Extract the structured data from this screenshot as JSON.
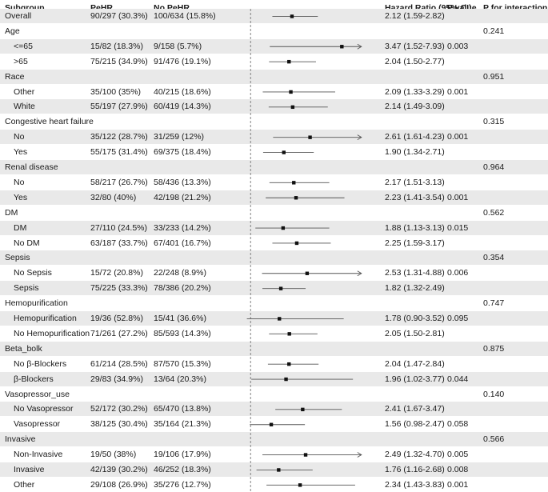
{
  "headers": {
    "subgroup": "Subgroup",
    "pehr": "PeHR",
    "no_pehr": "No PeHR",
    "hr": "Hazard Ratio (95% CI)",
    "p_value": "P value",
    "p_interaction": "P for interaction"
  },
  "rows": [
    {
      "kind": "data",
      "label": "Overall",
      "indent": false,
      "pehr": "90/297 (30.3%)",
      "no_pehr": "100/634 (15.8%)",
      "hr_text": "2.12 (1.59-2.82)",
      "p": "",
      "p_int": ""
    },
    {
      "kind": "group",
      "label": "Age",
      "indent": false,
      "pehr": "",
      "no_pehr": "",
      "hr_text": "",
      "p": "",
      "p_int": "0.241"
    },
    {
      "kind": "data",
      "label": "<=65",
      "indent": true,
      "pehr": "15/82 (18.3%)",
      "no_pehr": "9/158 (5.7%)",
      "hr_text": "3.47 (1.52-7.93)",
      "p": "0.003",
      "p_int": ""
    },
    {
      "kind": "data",
      "label": ">65",
      "indent": true,
      "pehr": "75/215 (34.9%)",
      "no_pehr": "91/476 (19.1%)",
      "hr_text": "2.04 (1.50-2.77)",
      "p": "",
      "p_int": ""
    },
    {
      "kind": "group",
      "label": "Race",
      "indent": false,
      "pehr": "",
      "no_pehr": "",
      "hr_text": "",
      "p": "",
      "p_int": "0.951"
    },
    {
      "kind": "data",
      "label": "Other",
      "indent": true,
      "pehr": "35/100 (35%)",
      "no_pehr": "40/215 (18.6%)",
      "hr_text": "2.09 (1.33-3.29)",
      "p": "0.001",
      "p_int": ""
    },
    {
      "kind": "data",
      "label": "White",
      "indent": true,
      "pehr": "55/197 (27.9%)",
      "no_pehr": "60/419 (14.3%)",
      "hr_text": "2.14 (1.49-3.09)",
      "p": "",
      "p_int": ""
    },
    {
      "kind": "group",
      "label": "Congestive heart failure",
      "indent": false,
      "pehr": "",
      "no_pehr": "",
      "hr_text": "",
      "p": "",
      "p_int": "0.315"
    },
    {
      "kind": "data",
      "label": "No",
      "indent": true,
      "pehr": "35/122 (28.7%)",
      "no_pehr": "31/259 (12%)",
      "hr_text": "2.61 (1.61-4.23)",
      "p": "0.001",
      "p_int": ""
    },
    {
      "kind": "data",
      "label": "Yes",
      "indent": true,
      "pehr": "55/175 (31.4%)",
      "no_pehr": "69/375 (18.4%)",
      "hr_text": "1.90 (1.34-2.71)",
      "p": "",
      "p_int": ""
    },
    {
      "kind": "group",
      "label": "Renal disease",
      "indent": false,
      "pehr": "",
      "no_pehr": "",
      "hr_text": "",
      "p": "",
      "p_int": "0.964"
    },
    {
      "kind": "data",
      "label": "No",
      "indent": true,
      "pehr": "58/217 (26.7%)",
      "no_pehr": "58/436 (13.3%)",
      "hr_text": "2.17 (1.51-3.13)",
      "p": "",
      "p_int": ""
    },
    {
      "kind": "data",
      "label": "Yes",
      "indent": true,
      "pehr": "32/80 (40%)",
      "no_pehr": "42/198 (21.2%)",
      "hr_text": "2.23 (1.41-3.54)",
      "p": "0.001",
      "p_int": ""
    },
    {
      "kind": "group",
      "label": "DM",
      "indent": false,
      "pehr": "",
      "no_pehr": "",
      "hr_text": "",
      "p": "",
      "p_int": "0.562"
    },
    {
      "kind": "data",
      "label": "DM",
      "indent": true,
      "pehr": "27/110 (24.5%)",
      "no_pehr": "33/233 (14.2%)",
      "hr_text": "1.88 (1.13-3.13)",
      "p": "0.015",
      "p_int": ""
    },
    {
      "kind": "data",
      "label": "No DM",
      "indent": true,
      "pehr": "63/187 (33.7%)",
      "no_pehr": "67/401 (16.7%)",
      "hr_text": "2.25 (1.59-3.17)",
      "p": "",
      "p_int": ""
    },
    {
      "kind": "group",
      "label": "Sepsis",
      "indent": false,
      "pehr": "",
      "no_pehr": "",
      "hr_text": "",
      "p": "",
      "p_int": "0.354"
    },
    {
      "kind": "data",
      "label": "No Sepsis",
      "indent": true,
      "pehr": "15/72 (20.8%)",
      "no_pehr": "22/248 (8.9%)",
      "hr_text": "2.53 (1.31-4.88)",
      "p": "0.006",
      "p_int": ""
    },
    {
      "kind": "data",
      "label": "Sepsis",
      "indent": true,
      "pehr": "75/225 (33.3%)",
      "no_pehr": "78/386 (20.2%)",
      "hr_text": "1.82 (1.32-2.49)",
      "p": "",
      "p_int": ""
    },
    {
      "kind": "group",
      "label": "Hemopurification",
      "indent": false,
      "pehr": "",
      "no_pehr": "",
      "hr_text": "",
      "p": "",
      "p_int": "0.747"
    },
    {
      "kind": "data",
      "label": "Hemopurification",
      "indent": true,
      "pehr": "19/36 (52.8%)",
      "no_pehr": "15/41 (36.6%)",
      "hr_text": "1.78 (0.90-3.52)",
      "p": "0.095",
      "p_int": ""
    },
    {
      "kind": "data",
      "label": "No Hemopurification",
      "indent": true,
      "pehr": "71/261 (27.2%)",
      "no_pehr": "85/593 (14.3%)",
      "hr_text": "2.05 (1.50-2.81)",
      "p": "",
      "p_int": ""
    },
    {
      "kind": "group",
      "label": "Beta_bolk",
      "indent": false,
      "pehr": "",
      "no_pehr": "",
      "hr_text": "",
      "p": "",
      "p_int": "0.875"
    },
    {
      "kind": "data",
      "label": "No β-Blockers",
      "indent": true,
      "pehr": "61/214 (28.5%)",
      "no_pehr": "87/570 (15.3%)",
      "hr_text": "2.04 (1.47-2.84)",
      "p": "",
      "p_int": ""
    },
    {
      "kind": "data",
      "label": "β-Blockers",
      "indent": true,
      "pehr": "29/83 (34.9%)",
      "no_pehr": "13/64 (20.3%)",
      "hr_text": "1.96 (1.02-3.77)",
      "p": "0.044",
      "p_int": ""
    },
    {
      "kind": "group",
      "label": "Vasopressor_use",
      "indent": false,
      "pehr": "",
      "no_pehr": "",
      "hr_text": "",
      "p": "",
      "p_int": "0.140"
    },
    {
      "kind": "data",
      "label": "No Vasopressor",
      "indent": true,
      "pehr": "52/172 (30.2%)",
      "no_pehr": "65/470 (13.8%)",
      "hr_text": "2.41 (1.67-3.47)",
      "p": "",
      "p_int": ""
    },
    {
      "kind": "data",
      "label": "Vasopressor",
      "indent": true,
      "pehr": "38/125 (30.4%)",
      "no_pehr": "35/164 (21.3%)",
      "hr_text": "1.56 (0.98-2.47)",
      "p": "0.058",
      "p_int": ""
    },
    {
      "kind": "group",
      "label": "Invasive",
      "indent": false,
      "pehr": "",
      "no_pehr": "",
      "hr_text": "",
      "p": "",
      "p_int": "0.566"
    },
    {
      "kind": "data",
      "label": "Non-Invasive",
      "indent": true,
      "pehr": "19/50 (38%)",
      "no_pehr": "19/106 (17.9%)",
      "hr_text": "2.49 (1.32-4.70)",
      "p": "0.005",
      "p_int": ""
    },
    {
      "kind": "data",
      "label": "Invasive",
      "indent": true,
      "pehr": "42/139 (30.2%)",
      "no_pehr": "46/252 (18.3%)",
      "hr_text": "1.76 (1.16-2.68)",
      "p": "0.008",
      "p_int": ""
    },
    {
      "kind": "data",
      "label": "Other",
      "indent": true,
      "pehr": "29/108 (26.9%)",
      "no_pehr": "35/276 (12.7%)",
      "hr_text": "2.34 (1.43-3.83)",
      "p": "0.001",
      "p_int": ""
    }
  ],
  "chart_data": {
    "type": "forest",
    "x_axis": {
      "ticks": [
        0,
        1,
        2,
        3,
        4
      ],
      "tick_labels": [
        "0",
        "1",
        "2",
        "3",
        "4"
      ],
      "range": [
        0,
        4
      ],
      "reference_line": 1,
      "reference_style": "dashed"
    },
    "clipped_upper_ci_shown_as_arrow": true,
    "estimates": [
      {
        "subgroup": "Overall",
        "hr": 2.12,
        "lower": 1.59,
        "upper": 2.82
      },
      {
        "subgroup": "<=65",
        "hr": 3.47,
        "lower": 1.52,
        "upper": 7.93
      },
      {
        "subgroup": ">65",
        "hr": 2.04,
        "lower": 1.5,
        "upper": 2.77
      },
      {
        "subgroup": "Other",
        "hr": 2.09,
        "lower": 1.33,
        "upper": 3.29
      },
      {
        "subgroup": "White",
        "hr": 2.14,
        "lower": 1.49,
        "upper": 3.09
      },
      {
        "subgroup": "No",
        "hr": 2.61,
        "lower": 1.61,
        "upper": 4.23
      },
      {
        "subgroup": "Yes",
        "hr": 1.9,
        "lower": 1.34,
        "upper": 2.71
      },
      {
        "subgroup": "No",
        "hr": 2.17,
        "lower": 1.51,
        "upper": 3.13
      },
      {
        "subgroup": "Yes",
        "hr": 2.23,
        "lower": 1.41,
        "upper": 3.54
      },
      {
        "subgroup": "DM",
        "hr": 1.88,
        "lower": 1.13,
        "upper": 3.13
      },
      {
        "subgroup": "No DM",
        "hr": 2.25,
        "lower": 1.59,
        "upper": 3.17
      },
      {
        "subgroup": "No Sepsis",
        "hr": 2.53,
        "lower": 1.31,
        "upper": 4.88
      },
      {
        "subgroup": "Sepsis",
        "hr": 1.82,
        "lower": 1.32,
        "upper": 2.49
      },
      {
        "subgroup": "Hemopurification",
        "hr": 1.78,
        "lower": 0.9,
        "upper": 3.52
      },
      {
        "subgroup": "No Hemopurification",
        "hr": 2.05,
        "lower": 1.5,
        "upper": 2.81
      },
      {
        "subgroup": "No β-Blockers",
        "hr": 2.04,
        "lower": 1.47,
        "upper": 2.84
      },
      {
        "subgroup": "β-Blockers",
        "hr": 1.96,
        "lower": 1.02,
        "upper": 3.77
      },
      {
        "subgroup": "No Vasopressor",
        "hr": 2.41,
        "lower": 1.67,
        "upper": 3.47
      },
      {
        "subgroup": "Vasopressor",
        "hr": 1.56,
        "lower": 0.98,
        "upper": 2.47
      },
      {
        "subgroup": "Non-Invasive",
        "hr": 2.49,
        "lower": 1.32,
        "upper": 4.7
      },
      {
        "subgroup": "Invasive",
        "hr": 1.76,
        "lower": 1.16,
        "upper": 2.68
      },
      {
        "subgroup": "Other",
        "hr": 2.34,
        "lower": 1.43,
        "upper": 3.83
      }
    ]
  }
}
